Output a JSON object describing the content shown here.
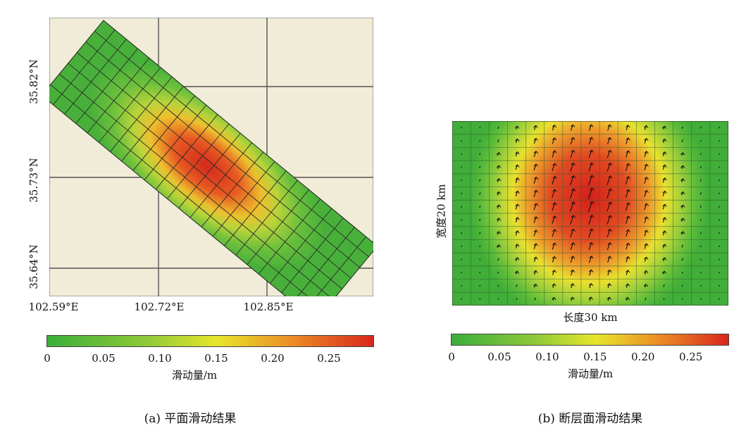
{
  "chart_data": [
    {
      "type": "heatmap",
      "panel": "a",
      "caption": "(a) 平面滑动结果",
      "x_ticks": [
        "102.59°E",
        "102.72°E",
        "102.85°E"
      ],
      "x_tick_values": [
        102.59,
        102.72,
        102.85
      ],
      "y_ticks": [
        "35.82°N",
        "35.73°N",
        "35.64°N"
      ],
      "y_tick_values": [
        35.82,
        35.73,
        35.64
      ],
      "grid": true,
      "colorbar": {
        "label": "滑动量/m",
        "ticks": [
          "0",
          "0.05",
          "0.10",
          "0.15",
          "0.20",
          "0.25"
        ],
        "range": [
          0,
          0.29
        ]
      },
      "peak_slip": 0.29
    },
    {
      "type": "heatmap",
      "panel": "b",
      "caption": "(b) 断层面滑动结果",
      "xlabel": "长度30 km",
      "ylabel": "宽度20 km",
      "colorbar": {
        "label": "滑动量/m",
        "ticks": [
          "0",
          "0.05",
          "0.10",
          "0.15",
          "0.20",
          "0.25"
        ],
        "range": [
          0,
          0.29
        ]
      },
      "peak_slip": 0.29,
      "grid_cells": [
        15,
        14
      ],
      "slip_arrows": true
    }
  ],
  "colors": {
    "map_background": "#f0ecd8",
    "low": "#3aae3a",
    "mid": "#e6e62a",
    "high": "#d8261c"
  }
}
